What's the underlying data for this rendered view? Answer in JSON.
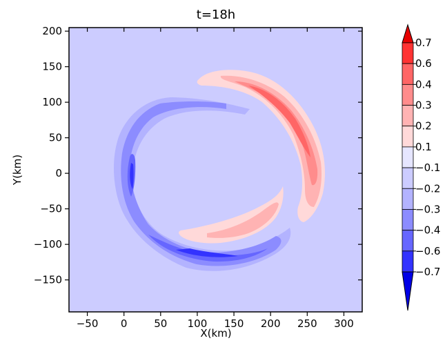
{
  "chart_data": {
    "type": "contour",
    "title": "t=18h",
    "xlabel": "X(km)",
    "ylabel": "Y(km)",
    "xlim": [
      -75,
      325
    ],
    "ylim": [
      -195,
      205
    ],
    "xticks": [
      -50,
      0,
      50,
      100,
      150,
      200,
      250,
      300
    ],
    "yticks": [
      -150,
      -100,
      -50,
      0,
      50,
      100,
      150,
      200
    ],
    "xtick_labels": [
      "−50",
      "0",
      "50",
      "100",
      "150",
      "200",
      "250",
      "300"
    ],
    "ytick_labels": [
      "−150",
      "−100",
      "−50",
      "0",
      "50",
      "100",
      "150",
      "200"
    ],
    "background_fill": "#ccccff",
    "colorbar": {
      "labels": [
        "0.7",
        "0.6",
        "0.4",
        "0.3",
        "0.2",
        "0.1",
        "−0.1",
        "−0.2",
        "−0.3",
        "−0.4",
        "−0.6",
        "−0.7"
      ],
      "colors": [
        "#e60000",
        "#ff3333",
        "#ff6666",
        "#ff8c8c",
        "#ffb3b3",
        "#ffd9d9",
        "#e6e6ff",
        "#ccccff",
        "#b3b3ff",
        "#8c8cff",
        "#6666ff",
        "#3333ff",
        "#0000e6"
      ]
    },
    "features": [
      {
        "name": "positive-anomaly-upper-right",
        "sign": "positive",
        "peak": 0.4,
        "center": [
          240,
          80
        ]
      },
      {
        "name": "positive-anomaly-lower",
        "sign": "positive",
        "peak": 0.3,
        "center": [
          150,
          -75
        ]
      },
      {
        "name": "negative-anomaly-west",
        "sign": "negative",
        "peak": -0.6,
        "center": [
          10,
          0
        ]
      },
      {
        "name": "negative-anomaly-south",
        "sign": "negative",
        "peak": -0.6,
        "center": [
          110,
          -125
        ]
      }
    ]
  }
}
